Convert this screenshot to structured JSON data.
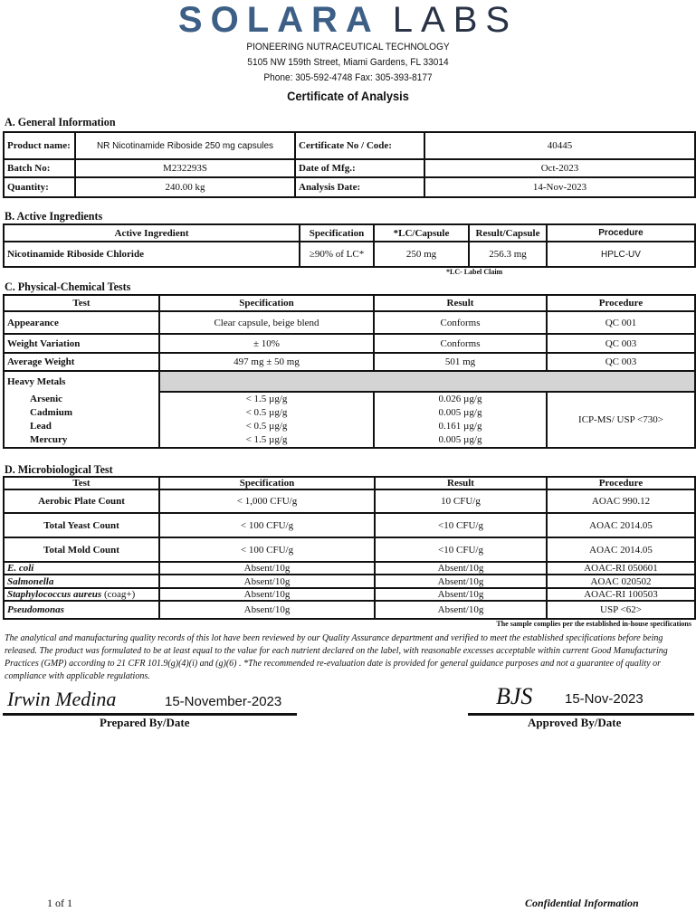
{
  "header": {
    "logo_word1": "SOLARA",
    "logo_word2": "LABS",
    "tagline": "PIONEERING NUTRACEUTICAL TECHNOLOGY",
    "address": "5105 NW 159th Street, Miami Gardens, FL 33014",
    "phone": "Phone: 305-592-4748 Fax: 305-393-8177",
    "title": "Certificate of Analysis",
    "brand_colors": {
      "solara": "#3d5f86",
      "labs": "#2a3346",
      "o_ring": "#e0a020"
    }
  },
  "general": {
    "heading": "A. General Information",
    "rows": [
      {
        "l1": "Product name:",
        "v1": "NR Nicotinamide Riboside 250 mg capsules",
        "l2": "Certificate No / Code:",
        "v2": "40445"
      },
      {
        "l1": "Batch No:",
        "v1": "M232293S",
        "l2": "Date of Mfg.:",
        "v2": "Oct-2023"
      },
      {
        "l1": "Quantity:",
        "v1": "240.00 kg",
        "l2": "Analysis Date:",
        "v2": "14-Nov-2023"
      }
    ]
  },
  "active": {
    "heading": "B. Active Ingredients",
    "columns": [
      "Active Ingredient",
      "Specification",
      "*LC/Capsule",
      "Result/Capsule",
      "Procedure"
    ],
    "rows": [
      [
        "Nicotinamide Riboside Chloride",
        "≥90% of LC*",
        "250 mg",
        "256.3 mg",
        "HPLC-UV"
      ]
    ],
    "footnote": "*LC- Label Claim"
  },
  "physchem": {
    "heading": "C. Physical-Chemical Tests",
    "columns": [
      "Test",
      "Specification",
      "Result",
      "Procedure"
    ],
    "rows": [
      [
        "Appearance",
        "Clear capsule, beige blend",
        "Conforms",
        "QC 001"
      ],
      [
        "Weight Variation",
        "± 10%",
        "Conforms",
        "QC 003"
      ],
      [
        "Average Weight",
        "497 mg ± 50 mg",
        "501 mg",
        "QC 003"
      ]
    ],
    "heavy_metals_label": "Heavy Metals",
    "metals": [
      {
        "name": "Arsenic",
        "spec": "< 1.5 µg/g",
        "result": "0.026 µg/g"
      },
      {
        "name": "Cadmium",
        "spec": "< 0.5 µg/g",
        "result": "0.005 µg/g"
      },
      {
        "name": "Lead",
        "spec": "< 0.5 µg/g",
        "result": "0.161 µg/g"
      },
      {
        "name": "Mercury",
        "spec": "< 1.5 µg/g",
        "result": "0.005 µg/g"
      }
    ],
    "metals_procedure": "ICP-MS/ USP <730>"
  },
  "micro": {
    "heading": "D. Microbiological Test",
    "columns": [
      "Test",
      "Specification",
      "Result",
      "Procedure"
    ],
    "rows": [
      [
        "Aerobic Plate Count",
        "< 1,000 CFU/g",
        "10 CFU/g",
        "AOAC 990.12"
      ],
      [
        "Total Yeast Count",
        "< 100 CFU/g",
        "<10 CFU/g",
        "AOAC 2014.05"
      ],
      [
        "Total Mold Count",
        "< 100 CFU/g",
        "<10 CFU/g",
        "AOAC 2014.05"
      ]
    ],
    "pathogens": [
      {
        "name": "E. coli",
        "suffix": "",
        "spec": "Absent/10g",
        "result": "Absent/10g",
        "proc": "AOAC-RI 050601"
      },
      {
        "name": "Salmonella",
        "suffix": "",
        "spec": "Absent/10g",
        "result": "Absent/10g",
        "proc": "AOAC 020502"
      },
      {
        "name": "Staphylococcus aureus",
        "suffix": " (coag+)",
        "spec": "Absent/10g",
        "result": "Absent/10g",
        "proc": "AOAC-RI 100503"
      },
      {
        "name": "Pseudomonas",
        "suffix": "",
        "spec": "Absent/10g",
        "result": "Absent/10g",
        "proc": "USP <62>"
      }
    ],
    "compliance": "The sample complies per the established in-house specifications"
  },
  "statement": "The analytical and manufacturing quality records of this lot have been reviewed by our Quality Assurance department and verified to meet the established specifications before being released. The product was formulated to be at least equal to the value for each nutrient declared on the label, with reasonable excesses acceptable within current Good Manufacturing Practices (GMP) according to 21 CFR 101.9(g)(4)(i) and (g)(6) . *The recommended re-evaluation date is provided for general guidance purposes and not a guarantee of quality or compliance with applicable regulations.",
  "signatures": {
    "prepared_signature": "Irwin Medina",
    "prepared_date": "15-November-2023",
    "prepared_label": "Prepared By/Date",
    "approved_signature": "BJS",
    "approved_date": "15-Nov-2023",
    "approved_label": "Approved By/Date"
  },
  "footer": {
    "page": "1 of 1",
    "confidential": "Confidential Information"
  }
}
